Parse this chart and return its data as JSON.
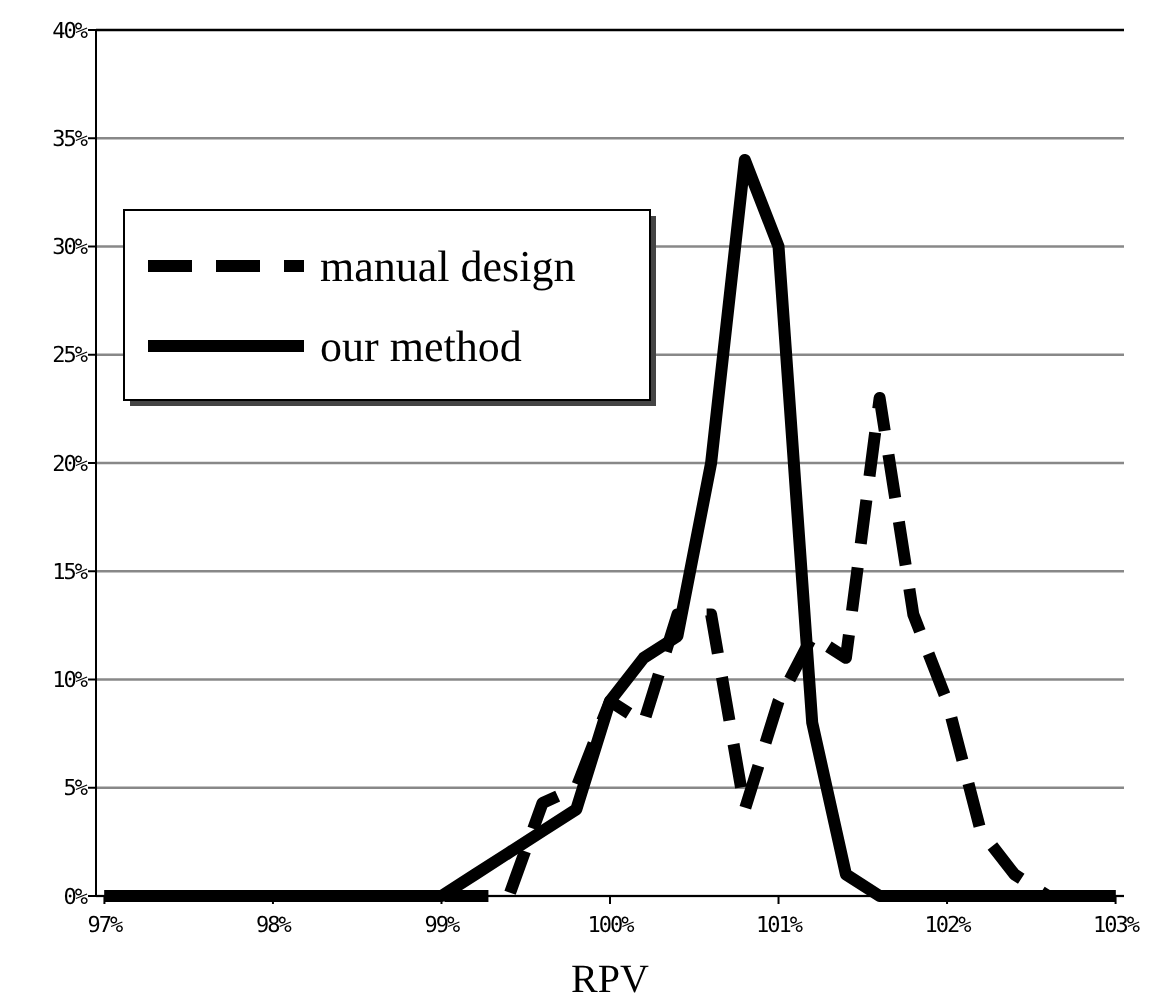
{
  "chart_data": {
    "type": "line",
    "xlabel": "RPV",
    "x": [
      97,
      97.2,
      97.4,
      97.6,
      97.8,
      98,
      98.2,
      98.4,
      98.6,
      98.8,
      99,
      99.2,
      99.4,
      99.6,
      99.8,
      100,
      100.2,
      100.4,
      100.6,
      100.8,
      101,
      101.2,
      101.4,
      101.6,
      101.8,
      102,
      102.2,
      102.4,
      102.6,
      102.8,
      103
    ],
    "series": [
      {
        "name": "manual design",
        "color": "#000000",
        "line_style": "dashed",
        "values": [
          0,
          0,
          0,
          0,
          0,
          0,
          0,
          0,
          0,
          0,
          0,
          0,
          0,
          4.3,
          5,
          9,
          8,
          13,
          13,
          4,
          9,
          12,
          11,
          23,
          13,
          9,
          3,
          1,
          0,
          0,
          0
        ]
      },
      {
        "name": "our method",
        "color": "#000000",
        "line_style": "solid",
        "values": [
          0,
          0,
          0,
          0,
          0,
          0,
          0,
          0,
          0,
          0,
          0,
          1,
          2,
          3,
          4,
          9,
          11,
          12,
          20,
          34,
          30,
          8,
          1,
          0,
          0,
          0,
          0,
          0,
          0,
          0,
          0
        ]
      }
    ],
    "xlim": [
      96.95,
      103.05
    ],
    "xticks": [
      {
        "value": 97,
        "label": "97%"
      },
      {
        "value": 98,
        "label": "98%"
      },
      {
        "value": 99,
        "label": "99%"
      },
      {
        "value": 100,
        "label": "100%"
      },
      {
        "value": 101,
        "label": "101%"
      },
      {
        "value": 102,
        "label": "102%"
      },
      {
        "value": 103,
        "label": "103%"
      }
    ],
    "ylim": [
      0,
      40
    ],
    "yticks": [
      {
        "value": 0,
        "label": "0%"
      },
      {
        "value": 5,
        "label": "5%"
      },
      {
        "value": 10,
        "label": "10%"
      },
      {
        "value": 15,
        "label": "15%"
      },
      {
        "value": 20,
        "label": "20%"
      },
      {
        "value": 25,
        "label": "25%"
      },
      {
        "value": 30,
        "label": "30%"
      },
      {
        "value": 35,
        "label": "35%"
      },
      {
        "value": 40,
        "label": "40%"
      }
    ],
    "grid": "y",
    "legend": "top left",
    "marker": "none"
  }
}
